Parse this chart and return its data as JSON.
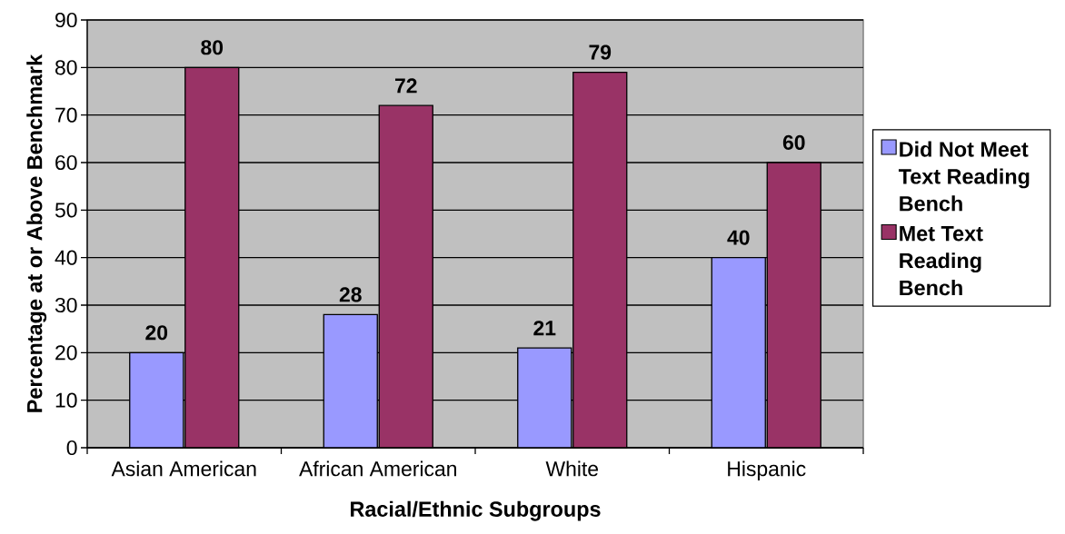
{
  "chart_data": {
    "type": "bar",
    "xlabel": "Racial/Ethnic Subgroups",
    "ylabel": "Percentage at or Above Benchmark",
    "categories": [
      "Asian American",
      "African American",
      "White",
      "Hispanic"
    ],
    "series": [
      {
        "name": "Did Not Meet Text Reading Bench",
        "color": "#9999ff",
        "values": [
          20,
          28,
          21,
          40
        ]
      },
      {
        "name": "Met Text Reading Bench",
        "color": "#993366",
        "values": [
          80,
          72,
          79,
          60
        ]
      }
    ],
    "ylim": [
      0,
      90
    ],
    "yticks": [
      0,
      10,
      20,
      30,
      40,
      50,
      60,
      70,
      80,
      90
    ],
    "grid": "y",
    "legend": "right",
    "data_labels": true
  }
}
